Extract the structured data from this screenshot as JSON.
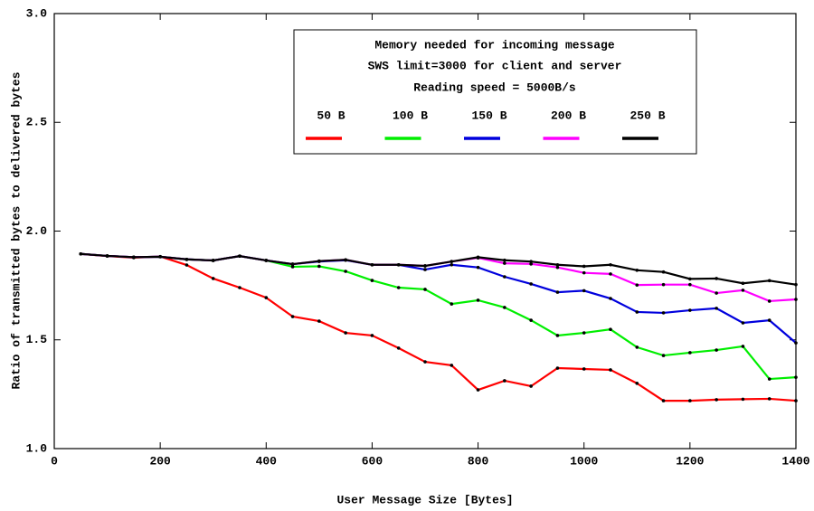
{
  "chart_data": {
    "type": "line",
    "legend_title": [
      "Memory needed for incoming message",
      "SWS limit=3000 for client and server",
      "Reading speed = 5000B/s"
    ],
    "x_label": "User Message Size [Bytes]",
    "y_label": "Ratio of transmitted bytes to delivered bytes",
    "x": [
      50,
      100,
      150,
      200,
      250,
      300,
      350,
      400,
      450,
      500,
      550,
      600,
      650,
      700,
      750,
      800,
      850,
      900,
      950,
      1000,
      1050,
      1100,
      1150,
      1200,
      1250,
      1300,
      1350,
      1400
    ],
    "series": [
      {
        "name": "50 B",
        "color": "#ff0000",
        "values": [
          1.895,
          1.885,
          1.878,
          1.883,
          1.844,
          1.782,
          1.74,
          1.694,
          1.607,
          1.586,
          1.532,
          1.52,
          1.462,
          1.399,
          1.383,
          1.27,
          1.312,
          1.287,
          1.37,
          1.366,
          1.362,
          1.3,
          1.22,
          1.22,
          1.225,
          1.227,
          1.229,
          1.22
        ]
      },
      {
        "name": "100 B",
        "color": "#00ee00",
        "values": [
          1.895,
          1.886,
          1.88,
          1.882,
          1.87,
          1.865,
          1.885,
          1.865,
          1.836,
          1.838,
          1.815,
          1.773,
          1.74,
          1.732,
          1.665,
          1.682,
          1.649,
          1.59,
          1.52,
          1.532,
          1.548,
          1.466,
          1.428,
          1.441,
          1.453,
          1.47,
          1.32,
          1.328
        ]
      },
      {
        "name": "150 B",
        "color": "#0000dd",
        "values": [
          1.895,
          1.886,
          1.88,
          1.882,
          1.87,
          1.865,
          1.885,
          1.865,
          1.848,
          1.86,
          1.866,
          1.845,
          1.845,
          1.823,
          1.845,
          1.833,
          1.79,
          1.757,
          1.719,
          1.726,
          1.69,
          1.628,
          1.624,
          1.636,
          1.645,
          1.578,
          1.59,
          1.486
        ]
      },
      {
        "name": "200 B",
        "color": "#ff00ff",
        "values": [
          1.895,
          1.886,
          1.88,
          1.882,
          1.87,
          1.865,
          1.885,
          1.865,
          1.848,
          1.862,
          1.868,
          1.845,
          1.845,
          1.84,
          1.86,
          1.877,
          1.852,
          1.849,
          1.833,
          1.808,
          1.803,
          1.752,
          1.754,
          1.754,
          1.715,
          1.728,
          1.678,
          1.686
        ]
      },
      {
        "name": "250 B",
        "color": "#000000",
        "values": [
          1.895,
          1.886,
          1.88,
          1.882,
          1.87,
          1.865,
          1.885,
          1.865,
          1.848,
          1.862,
          1.868,
          1.845,
          1.845,
          1.84,
          1.86,
          1.88,
          1.866,
          1.86,
          1.845,
          1.838,
          1.845,
          1.82,
          1.812,
          1.78,
          1.782,
          1.76,
          1.772,
          1.754
        ]
      }
    ],
    "xlim": [
      0,
      1400
    ],
    "ylim": [
      1,
      3
    ],
    "xticks": [
      0,
      200,
      400,
      600,
      800,
      1000,
      1200,
      1400
    ],
    "yticks": [
      {
        "value": 1,
        "label": "1.0"
      },
      1.5,
      {
        "value": 2,
        "label": "2.0"
      },
      2.5,
      {
        "value": 3,
        "label": "3.0"
      }
    ],
    "marker_color": "#000000"
  }
}
